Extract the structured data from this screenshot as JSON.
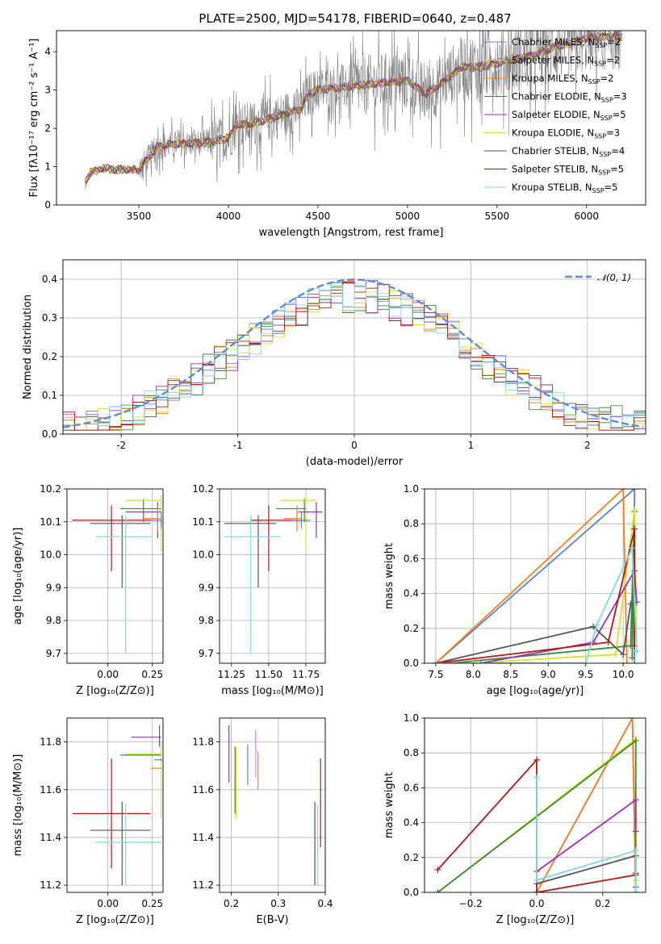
{
  "figure": {
    "title": "PLATE=2500, MJD=54178, FIBERID=0640, z=0.487"
  },
  "colors": {
    "Chabrier MILES": "#5b7fd6",
    "Salpeter MILES": "#c8c8c8",
    "Kroupa MILES": "#f08020",
    "Chabrier ELODIE": "#3a8a3a",
    "Salpeter ELODIE": "#9b30b8",
    "Kroupa ELODIE": "#d8e030",
    "Chabrier STELIB": "#555555",
    "Salpeter STELIB": "#b01818",
    "Kroupa STELIB": "#80d8e0",
    "data": "#808080",
    "normal": "#5b8dd6",
    "extra_pink": "#e080c8"
  },
  "chart_data": [
    {
      "id": "spectrum",
      "type": "line",
      "title": "PLATE=2500, MJD=54178, FIBERID=0640, z=0.487",
      "xlabel": "wavelength [Angstrom, rest frame]",
      "ylabel": "Flux [fλ10⁻¹⁷ erg cm⁻² s⁻¹ A⁻¹]",
      "xlim": [
        3040,
        6330
      ],
      "ylim": [
        0,
        4.55
      ],
      "xticks": [
        3500,
        4000,
        4500,
        5000,
        5500,
        6000
      ],
      "yticks": [
        0,
        1,
        2,
        3,
        4
      ],
      "grid": false,
      "legend_position": "top-right",
      "continuum": {
        "x": [
          3200,
          3230,
          3300,
          3400,
          3500,
          3600,
          3700,
          3800,
          3900,
          3950,
          4000,
          4050,
          4100,
          4200,
          4300,
          4400,
          4450,
          4500,
          4600,
          4700,
          4800,
          4900,
          5000,
          5100,
          5200,
          5300,
          5400,
          5500,
          5600,
          5700,
          5800,
          5900,
          6000,
          6100,
          6200
        ],
        "y": [
          0.55,
          0.85,
          0.95,
          0.92,
          0.92,
          1.5,
          1.6,
          1.6,
          1.65,
          1.7,
          1.75,
          2.1,
          2.1,
          2.2,
          2.35,
          2.5,
          2.9,
          3.0,
          3.05,
          3.1,
          3.15,
          3.2,
          3.25,
          2.9,
          3.2,
          3.6,
          3.6,
          3.7,
          3.8,
          3.9,
          4.1,
          4.2,
          4.35,
          4.4,
          4.4
        ]
      },
      "series": [
        {
          "name": "Chabrier MILES, N$_{SSP}$=2",
          "label": "Chabrier MILES, N",
          "sub": "SSP",
          "suffix": "=2"
        },
        {
          "name": "Salpeter MILES, N$_{SSP}$=2",
          "label": "Salpeter MILES, N",
          "sub": "SSP",
          "suffix": "=2"
        },
        {
          "name": "Kroupa MILES, N$_{SSP}$=2",
          "label": "Kroupa MILES, N",
          "sub": "SSP",
          "suffix": "=2"
        },
        {
          "name": "Chabrier ELODIE, N$_{SSP}$=3",
          "label": "Chabrier ELODIE, N",
          "sub": "SSP",
          "suffix": "=3"
        },
        {
          "name": "Salpeter ELODIE, N$_{SSP}$=5",
          "label": "Salpeter ELODIE, N",
          "sub": "SSP",
          "suffix": "=5"
        },
        {
          "name": "Kroupa ELODIE, N$_{SSP}$=3",
          "label": "Kroupa ELODIE, N",
          "sub": "SSP",
          "suffix": "=3"
        },
        {
          "name": "Chabrier STELIB, N$_{SSP}$=4",
          "label": "Chabrier STELIB, N",
          "sub": "SSP",
          "suffix": "=4"
        },
        {
          "name": "Salpeter STELIB, N$_{SSP}$=5",
          "label": "Salpeter STELIB, N",
          "sub": "SSP",
          "suffix": "=5"
        },
        {
          "name": "Kroupa STELIB, N$_{SSP}$=5",
          "label": "Kroupa STELIB, N",
          "sub": "SSP",
          "suffix": "=5"
        }
      ]
    },
    {
      "id": "residuals",
      "type": "histogram",
      "xlabel": "(data-model)/error",
      "ylabel": "Normed distribution",
      "xlim": [
        -2.5,
        2.5
      ],
      "ylim": [
        0,
        0.45
      ],
      "xticks": [
        -2,
        -1,
        0,
        1,
        2
      ],
      "yticks": [
        0.0,
        0.1,
        0.2,
        0.3,
        0.4
      ],
      "grid": true,
      "legend_position": "top-right",
      "normal_curve": {
        "label": "𝒩(0, 1)",
        "mean": 0,
        "sigma": 1
      },
      "bin_width": 0.1,
      "envelope": [
        0.04,
        0.05,
        0.07,
        0.06,
        0.05,
        0.06,
        0.05,
        0.06,
        0.07,
        0.08,
        0.09,
        0.12,
        0.13,
        0.15,
        0.16,
        0.18,
        0.2,
        0.22,
        0.23,
        0.25,
        0.26,
        0.28,
        0.29,
        0.3,
        0.32,
        0.33,
        0.34,
        0.34,
        0.35,
        0.36,
        0.36,
        0.37,
        0.36,
        0.37,
        0.36,
        0.35,
        0.34,
        0.32,
        0.34,
        0.33,
        0.33,
        0.32,
        0.31,
        0.3,
        0.3,
        0.29,
        0.28,
        0.27,
        0.25,
        0.26
      ],
      "envelope_right": [
        0.26,
        0.25,
        0.24,
        0.23,
        0.22,
        0.21,
        0.2,
        0.18,
        0.17,
        0.16,
        0.14,
        0.13,
        0.12,
        0.11,
        0.1,
        0.09,
        0.09,
        0.08,
        0.07,
        0.07,
        0.06,
        0.06,
        0.05,
        0.06,
        0.05
      ]
    },
    {
      "id": "age-vs-Z",
      "type": "errorbar",
      "xlabel": "Z [log₁₀(Z/Z⊙)]",
      "ylabel": "age  [log₁₀(age/yr)]",
      "xlim": [
        -0.23,
        0.31
      ],
      "ylim": [
        9.67,
        10.2
      ],
      "xticks": [
        0.0,
        0.25
      ],
      "xtick_labels": [
        "0.00",
        "0.25"
      ],
      "yticks": [
        9.7,
        9.8,
        9.9,
        10.0,
        10.1,
        10.2
      ],
      "ytick_labels": [
        "9.7",
        "9.8",
        "9.9",
        "10.0",
        "10.1",
        "10.2"
      ],
      "grid": true,
      "points": [
        {
          "series": "Salpeter STELIB",
          "x": 0.02,
          "y": 10.105,
          "xlo": -0.2,
          "xhi": 0.24,
          "ylo": 9.95,
          "yhi": 10.15
        },
        {
          "series": "Chabrier STELIB",
          "x": 0.08,
          "y": 10.095,
          "xlo": -0.1,
          "xhi": 0.24,
          "ylo": 9.9,
          "yhi": 10.12
        },
        {
          "series": "Kroupa STELIB",
          "x": 0.1,
          "y": 10.055,
          "xlo": -0.07,
          "xhi": 0.25,
          "ylo": 9.7,
          "yhi": 10.12
        },
        {
          "series": "Chabrier ELODIE",
          "x": 0.2,
          "y": 10.14,
          "xlo": 0.07,
          "xhi": 0.3,
          "ylo": 10.1,
          "yhi": 10.17
        },
        {
          "series": "Kroupa ELODIE",
          "x": 0.3,
          "y": 10.165,
          "xlo": 0.1,
          "xhi": 0.3,
          "ylo": 10.01,
          "yhi": 10.18
        },
        {
          "series": "Salpeter ELODIE",
          "x": 0.28,
          "y": 10.13,
          "xlo": 0.1,
          "xhi": 0.3,
          "ylo": 10.05,
          "yhi": 10.16
        },
        {
          "series": "Kroupa MILES",
          "x": 0.28,
          "y": 10.11,
          "xlo": 0.2,
          "xhi": 0.3,
          "ylo": 10.07,
          "yhi": 10.15
        },
        {
          "series": "Chabrier MILES",
          "x": 0.3,
          "y": 10.105,
          "xlo": 0.24,
          "xhi": 0.3,
          "ylo": 10.08,
          "yhi": 10.13
        }
      ]
    },
    {
      "id": "age-vs-mass",
      "type": "errorbar",
      "xlabel": "mass [log₁₀(M/M⊙)]",
      "ylabel": "",
      "xlim": [
        11.17,
        11.88
      ],
      "ylim": [
        9.67,
        10.2
      ],
      "xticks": [
        11.25,
        11.5,
        11.75
      ],
      "xtick_labels": [
        "11.25",
        "11.50",
        "11.75"
      ],
      "yticks": [
        9.7,
        9.8,
        9.9,
        10.0,
        10.1,
        10.2
      ],
      "ytick_labels": [
        "9.7",
        "9.8",
        "9.9",
        "10.0",
        "10.1",
        "10.2"
      ],
      "grid": true,
      "points": [
        {
          "series": "Chabrier STELIB",
          "x": 11.43,
          "y": 10.095,
          "xlo": 11.2,
          "xhi": 11.55,
          "ylo": 9.9,
          "yhi": 10.12
        },
        {
          "series": "Salpeter STELIB",
          "x": 11.5,
          "y": 10.105,
          "xlo": 11.38,
          "xhi": 11.72,
          "ylo": 9.95,
          "yhi": 10.15
        },
        {
          "series": "Kroupa STELIB",
          "x": 11.38,
          "y": 10.055,
          "xlo": 11.2,
          "xhi": 11.58,
          "ylo": 9.7,
          "yhi": 10.12
        },
        {
          "series": "Chabrier ELODIE",
          "x": 11.74,
          "y": 10.14,
          "xlo": 11.55,
          "xhi": 11.75,
          "ylo": 10.1,
          "yhi": 10.17
        },
        {
          "series": "Kroupa ELODIE",
          "x": 11.75,
          "y": 10.165,
          "xlo": 11.58,
          "xhi": 11.82,
          "ylo": 10.01,
          "yhi": 10.18
        },
        {
          "series": "Salpeter ELODIE",
          "x": 11.82,
          "y": 10.13,
          "xlo": 11.7,
          "xhi": 11.86,
          "ylo": 10.05,
          "yhi": 10.16
        },
        {
          "series": "Kroupa MILES",
          "x": 11.69,
          "y": 10.11,
          "xlo": 11.6,
          "xhi": 11.72,
          "ylo": 10.07,
          "yhi": 10.15
        },
        {
          "series": "Chabrier MILES",
          "x": 11.72,
          "y": 10.105,
          "xlo": 11.65,
          "xhi": 11.78,
          "ylo": 10.08,
          "yhi": 10.13
        }
      ]
    },
    {
      "id": "mass-weight-vs-age",
      "type": "line",
      "xlabel": "age  [log₁₀(age/yr)]",
      "ylabel": "mass weight",
      "xlim": [
        7.35,
        10.3
      ],
      "ylim": [
        0,
        1.0
      ],
      "xticks": [
        7.5,
        8.0,
        8.5,
        9.0,
        9.5,
        10.0
      ],
      "xtick_labels": [
        "7.5",
        "8.0",
        "8.5",
        "9.0",
        "9.5",
        "10.0"
      ],
      "yticks": [
        0.0,
        0.2,
        0.4,
        0.6,
        0.8,
        1.0
      ],
      "ytick_labels": [
        "0.0",
        "0.2",
        "0.4",
        "0.6",
        "0.8",
        "1.0"
      ],
      "grid": true,
      "series": [
        {
          "name": "Chabrier MILES",
          "x": [
            7.5,
            10.15,
            10.15
          ],
          "y": [
            0.0,
            1.0,
            0.0
          ]
        },
        {
          "name": "Kroupa MILES",
          "x": [
            7.5,
            10.0,
            10.05
          ],
          "y": [
            0.0,
            1.0,
            0.0
          ]
        },
        {
          "name": "Chabrier ELODIE",
          "x": [
            7.7,
            10.1,
            10.15,
            10.12
          ],
          "y": [
            0.0,
            0.1,
            0.87,
            0.03
          ]
        },
        {
          "name": "Kroupa ELODIE",
          "x": [
            8.0,
            9.9,
            10.15,
            10.18
          ],
          "y": [
            0.0,
            0.05,
            0.88,
            0.07
          ]
        },
        {
          "name": "Salpeter ELODIE",
          "x": [
            8.1,
            9.6,
            10.15,
            10.18
          ],
          "y": [
            0.0,
            0.12,
            0.53,
            0.35
          ]
        },
        {
          "name": "Chabrier STELIB",
          "x": [
            7.5,
            9.6,
            10.0,
            10.1
          ],
          "y": [
            0.0,
            0.21,
            0.05,
            0.34
          ]
        },
        {
          "name": "Salpeter STELIB",
          "x": [
            7.5,
            9.8,
            10.15,
            10.15
          ],
          "y": [
            0.0,
            0.12,
            0.77,
            0.1
          ]
        },
        {
          "name": "Kroupa STELIB",
          "x": [
            7.5,
            9.5,
            9.65,
            10.12,
            10.18
          ],
          "y": [
            0.0,
            0.0,
            0.22,
            0.66,
            0.07
          ]
        }
      ]
    },
    {
      "id": "mass-vs-Z",
      "type": "errorbar",
      "xlabel": "Z [log₁₀(Z/Z⊙)]",
      "ylabel": "mass [log₁₀(M/M⊙)]",
      "xlim": [
        -0.23,
        0.31
      ],
      "ylim": [
        11.17,
        11.9
      ],
      "xticks": [
        0.0,
        0.25
      ],
      "xtick_labels": [
        "0.00",
        "0.25"
      ],
      "yticks": [
        11.2,
        11.4,
        11.6,
        11.8
      ],
      "ytick_labels": [
        "11.2",
        "11.4",
        "11.6",
        "11.8"
      ],
      "grid": true,
      "points": [
        {
          "series": "Salpeter STELIB",
          "x": 0.02,
          "y": 11.5,
          "xlo": -0.2,
          "xhi": 0.24,
          "ylo": 11.27,
          "yhi": 11.73
        },
        {
          "series": "Chabrier STELIB",
          "x": 0.08,
          "y": 11.43,
          "xlo": -0.1,
          "xhi": 0.24,
          "ylo": 11.2,
          "yhi": 11.55
        },
        {
          "series": "Kroupa STELIB",
          "x": 0.1,
          "y": 11.38,
          "xlo": -0.07,
          "xhi": 0.3,
          "ylo": 11.2,
          "yhi": 11.54
        },
        {
          "series": "Chabrier ELODIE",
          "x": 0.2,
          "y": 11.745,
          "xlo": 0.07,
          "xhi": 0.3,
          "ylo": 11.745,
          "yhi": 11.745
        },
        {
          "series": "Kroupa ELODIE",
          "x": 0.3,
          "y": 11.75,
          "xlo": 0.1,
          "xhi": 0.3,
          "ylo": 11.48,
          "yhi": 11.8
        },
        {
          "series": "Salpeter ELODIE",
          "x": 0.29,
          "y": 11.82,
          "xlo": 0.13,
          "xhi": 0.3,
          "ylo": 11.78,
          "yhi": 11.87
        },
        {
          "series": "Kroupa MILES",
          "x": 0.28,
          "y": 11.69,
          "xlo": 0.24,
          "xhi": 0.3,
          "ylo": 11.69,
          "yhi": 11.69
        },
        {
          "series": "Chabrier MILES",
          "x": 0.3,
          "y": 11.725,
          "xlo": 0.26,
          "xhi": 0.3,
          "ylo": 11.72,
          "yhi": 11.73
        }
      ]
    },
    {
      "id": "mass-vs-ebv",
      "type": "errorbar",
      "xlabel": "E(B-V)",
      "ylabel": "",
      "xlim": [
        0.175,
        0.4
      ],
      "ylim": [
        11.17,
        11.9
      ],
      "xticks": [
        0.2,
        0.3,
        0.4
      ],
      "xtick_labels": [
        "0.2",
        "0.3",
        "0.4"
      ],
      "yticks": [
        11.2,
        11.4,
        11.6,
        11.8
      ],
      "ytick_labels": [
        "11.2",
        "11.4",
        "11.6",
        "11.8"
      ],
      "grid": true,
      "points": [
        {
          "series": "Salpeter ELODIE",
          "x": 0.195,
          "y": 11.75,
          "ylo": 11.63,
          "yhi": 11.87
        },
        {
          "series": "Kroupa ELODIE",
          "x": 0.21,
          "y": 11.7,
          "ylo": 11.48,
          "yhi": 11.78
        },
        {
          "series": "Chabrier ELODIE",
          "x": 0.208,
          "y": 11.74,
          "ylo": 11.5,
          "yhi": 11.78
        },
        {
          "series": "Chabrier MILES",
          "x": 0.235,
          "y": 11.72,
          "ylo": 11.62,
          "yhi": 11.79
        },
        {
          "series": "pink",
          "x": 0.252,
          "y": 11.75,
          "ylo": 11.65,
          "yhi": 11.85
        },
        {
          "series": "Kroupa MILES",
          "x": 0.257,
          "y": 11.69,
          "ylo": 11.6,
          "yhi": 11.76
        },
        {
          "series": "Chabrier STELIB",
          "x": 0.378,
          "y": 11.43,
          "ylo": 11.2,
          "yhi": 11.55
        },
        {
          "series": "Kroupa STELIB",
          "x": 0.384,
          "y": 11.38,
          "ylo": 11.2,
          "yhi": 11.54
        },
        {
          "series": "Salpeter STELIB",
          "x": 0.39,
          "y": 11.5,
          "ylo": 11.36,
          "yhi": 11.73
        }
      ]
    },
    {
      "id": "mass-weight-vs-Z",
      "type": "line",
      "xlabel": "Z [log₁₀(Z/Z⊙)]",
      "ylabel": "mass weight",
      "xlim": [
        -0.34,
        0.33
      ],
      "ylim": [
        0,
        1.0
      ],
      "xticks": [
        -0.2,
        0.0,
        0.2
      ],
      "xtick_labels": [
        "−0.2",
        "0.0",
        "0.2"
      ],
      "yticks": [
        0.0,
        0.2,
        0.4,
        0.6,
        0.8,
        1.0
      ],
      "ytick_labels": [
        "0.0",
        "0.2",
        "0.4",
        "0.6",
        "0.8",
        "1.0"
      ],
      "grid": true,
      "series": [
        {
          "name": "Chabrier MILES",
          "x": [
            0.0,
            0.29,
            0.3
          ],
          "y": [
            0.0,
            1.0,
            0.0
          ]
        },
        {
          "name": "Kroupa MILES",
          "x": [
            0.0,
            0.29,
            0.3
          ],
          "y": [
            0.0,
            1.0,
            0.0
          ]
        },
        {
          "name": "Kroupa ELODIE",
          "x": [
            -0.3,
            0.3,
            0.3
          ],
          "y": [
            0.0,
            0.88,
            0.07
          ]
        },
        {
          "name": "Chabrier ELODIE",
          "x": [
            -0.3,
            0.3,
            0.3
          ],
          "y": [
            0.0,
            0.87,
            0.03
          ]
        },
        {
          "name": "Salpeter ELODIE",
          "x": [
            0.0,
            0.3,
            0.3
          ],
          "y": [
            0.12,
            0.53,
            0.35
          ]
        },
        {
          "name": "Chabrier STELIB",
          "x": [
            0.0,
            0.3,
            0.3
          ],
          "y": [
            0.05,
            0.21,
            0.11
          ]
        },
        {
          "name": "Salpeter STELIB",
          "x": [
            -0.3,
            0.0,
            0.0,
            0.3
          ],
          "y": [
            0.13,
            0.76,
            0.0,
            0.1
          ]
        },
        {
          "name": "Kroupa STELIB",
          "x": [
            0.0,
            0.0,
            0.3,
            0.3
          ],
          "y": [
            0.66,
            0.07,
            0.24,
            0.0
          ]
        }
      ]
    }
  ]
}
